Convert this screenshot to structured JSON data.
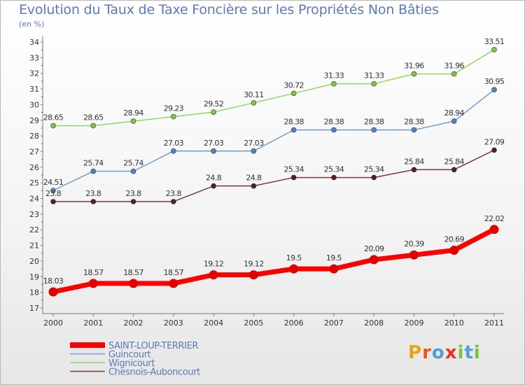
{
  "title": "Evolution du Taux de Taxe Foncière sur les Propriétés Non Bâties",
  "unit_label": "(en %)",
  "logo": {
    "letters": [
      "P",
      "r",
      "o",
      "x",
      "i",
      "t",
      "i"
    ],
    "colors": [
      "#e8a21a",
      "#e85a1a",
      "#4aa0d8",
      "#e8321a",
      "#7cc043",
      "#4aa0d8",
      "#7cc043"
    ]
  },
  "chart_data": {
    "type": "line",
    "title": "Evolution du Taux de Taxe Foncière sur les Propriétés Non Bâties",
    "ylabel": "(en %)",
    "xlabel": "",
    "x": [
      "2000",
      "2001",
      "2002",
      "2003",
      "2004",
      "2005",
      "2006",
      "2007",
      "2008",
      "2009",
      "2010",
      "2011"
    ],
    "ylim": [
      17,
      34
    ],
    "yticks": [
      17,
      18,
      19,
      20,
      21,
      22,
      23,
      24,
      25,
      26,
      27,
      28,
      29,
      30,
      31,
      32,
      33,
      34
    ],
    "grid": false,
    "legend_position": "bottom-left",
    "series": [
      {
        "name": "SAINT-LOUP-TERRIER",
        "color": "#ff0000",
        "marker": "#e00000",
        "thick": true,
        "values": [
          18.03,
          18.57,
          18.57,
          18.57,
          19.12,
          19.12,
          19.5,
          19.5,
          20.09,
          20.39,
          20.69,
          22.02
        ],
        "labels": [
          "18.03",
          "18.57",
          "18.57",
          "18.57",
          "19.12",
          "19.12",
          "19.5",
          "19.5",
          "20.09",
          "20.39",
          "20.69",
          "22.02"
        ]
      },
      {
        "name": "Guincourt",
        "color": "#6e9fd0",
        "marker": "#4a86c8",
        "thick": false,
        "values": [
          24.51,
          25.74,
          25.74,
          27.03,
          27.03,
          27.03,
          28.38,
          28.38,
          28.38,
          28.38,
          28.94,
          30.95
        ],
        "labels": [
          "24.51",
          "25.74",
          "25.74",
          "27.03",
          "27.03",
          "27.03",
          "28.38",
          "28.38",
          "28.38",
          "28.38",
          "28.94",
          "30.95"
        ]
      },
      {
        "name": "Wignicourt",
        "color": "#90d860",
        "marker": "#7cc843",
        "thick": false,
        "values": [
          28.65,
          28.65,
          28.94,
          29.23,
          29.52,
          30.11,
          30.72,
          31.33,
          31.33,
          31.96,
          31.96,
          33.51
        ],
        "labels": [
          "28.65",
          "28.65",
          "28.94",
          "29.23",
          "29.52",
          "30.11",
          "30.72",
          "31.33",
          "31.33",
          "31.96",
          "31.96",
          "33.51"
        ]
      },
      {
        "name": "Chesnois-Auboncourt",
        "color": "#7a3a3a",
        "marker": "#5a1e1e",
        "thick": false,
        "values": [
          23.8,
          23.8,
          23.8,
          23.8,
          24.8,
          24.8,
          25.34,
          25.34,
          25.34,
          25.84,
          25.84,
          27.09
        ],
        "labels": [
          "23.8",
          "23.8",
          "23.8",
          "23.8",
          "24.8",
          "24.8",
          "25.34",
          "25.34",
          "25.34",
          "25.84",
          "25.84",
          "27.09"
        ]
      }
    ]
  }
}
